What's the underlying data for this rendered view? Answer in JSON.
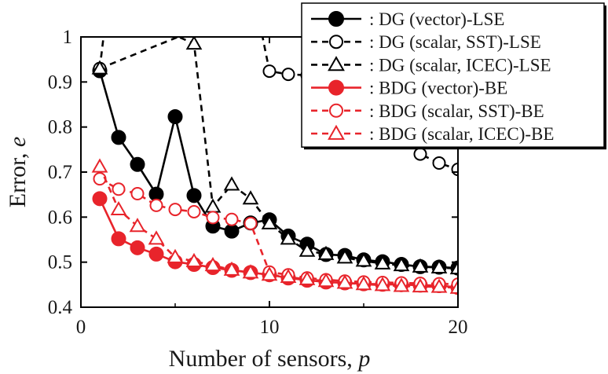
{
  "chart_data": {
    "type": "line",
    "xlabel": "Number of sensors, ",
    "xlabel_var": "p",
    "ylabel": "Error, ",
    "ylabel_var": "e",
    "xlim": [
      0,
      20
    ],
    "ylim": [
      0.4,
      1.0
    ],
    "xticks": [
      0,
      10,
      20
    ],
    "xtick_labels": [
      "0",
      "10",
      "20"
    ],
    "yticks": [
      0.4,
      0.5,
      0.6,
      0.7,
      0.8,
      0.9,
      1.0
    ],
    "ytick_labels": [
      "0.4",
      "0.5",
      "0.6",
      "0.7",
      "0.8",
      "0.9",
      "1"
    ],
    "grid": false,
    "legend_position": "top-right",
    "series": [
      {
        "name": ": DG (vector)-LSE",
        "color": "#000000",
        "dash": "solid",
        "marker": "circle",
        "filled": true,
        "x": [
          1,
          2,
          3,
          4,
          5,
          6,
          7,
          8,
          9,
          10,
          11,
          12,
          13,
          14,
          15,
          16,
          17,
          18,
          19,
          20
        ],
        "y": [
          0.925,
          0.777,
          0.717,
          0.651,
          0.823,
          0.648,
          0.58,
          0.569,
          0.587,
          0.594,
          0.558,
          0.54,
          0.517,
          0.515,
          0.505,
          0.501,
          0.495,
          0.49,
          0.489,
          0.487
        ]
      },
      {
        "name": ": DG (scalar, SST)-LSE",
        "color": "#000000",
        "dash": "dashed",
        "marker": "circle",
        "filled": false,
        "x": [
          1,
          9.3,
          10,
          11,
          12,
          13,
          14,
          15,
          16,
          17,
          18,
          19,
          20
        ],
        "y": [
          0.93,
          1.07,
          0.924,
          0.917,
          0.915,
          0.9,
          0.88,
          0.86,
          0.83,
          0.8,
          0.74,
          0.72,
          0.706
        ]
      },
      {
        "name": ": DG (scalar, ICEC)-LSE",
        "color": "#000000",
        "dash": "dashed",
        "marker": "triangle",
        "filled": false,
        "x": [
          1,
          1.4,
          6,
          7,
          8,
          9,
          10,
          11,
          12,
          13,
          14,
          15,
          16,
          17,
          18,
          19,
          20
        ],
        "y": [
          0.93,
          1.07,
          0.985,
          0.623,
          0.672,
          0.641,
          0.586,
          0.552,
          0.525,
          0.518,
          0.51,
          0.503,
          0.497,
          0.493,
          0.49,
          0.488,
          0.486
        ]
      },
      {
        "name": ": BDG (vector)-BE",
        "color": "#e8242b",
        "dash": "solid",
        "marker": "circle",
        "filled": true,
        "x": [
          1,
          2,
          3,
          4,
          5,
          6,
          7,
          8,
          9,
          10,
          11,
          12,
          13,
          14,
          15,
          16,
          17,
          18,
          19,
          20
        ],
        "y": [
          0.641,
          0.552,
          0.532,
          0.518,
          0.501,
          0.495,
          0.488,
          0.482,
          0.477,
          0.472,
          0.465,
          0.46,
          0.456,
          0.454,
          0.452,
          0.451,
          0.45,
          0.449,
          0.448,
          0.444
        ]
      },
      {
        "name": ": BDG (scalar, SST)-BE",
        "color": "#e8242b",
        "dash": "dashed",
        "marker": "circle",
        "filled": false,
        "x": [
          1,
          2,
          3,
          4,
          5,
          6,
          7,
          8,
          9,
          10,
          11,
          12,
          13,
          14,
          15,
          16,
          17,
          18,
          19,
          20
        ],
        "y": [
          0.685,
          0.662,
          0.652,
          0.626,
          0.617,
          0.612,
          0.599,
          0.595,
          0.586,
          0.478,
          0.472,
          0.465,
          0.461,
          0.458,
          0.456,
          0.455,
          0.454,
          0.453,
          0.452,
          0.451
        ]
      },
      {
        "name": ": BDG (scalar, ICEC)-BE",
        "color": "#e8242b",
        "dash": "dashed",
        "marker": "triangle",
        "filled": false,
        "x": [
          1,
          2,
          3,
          4,
          5,
          6,
          7,
          8,
          9,
          10,
          11,
          12,
          13,
          14,
          15,
          16,
          17,
          18,
          19,
          20
        ],
        "y": [
          0.712,
          0.617,
          0.58,
          0.552,
          0.511,
          0.502,
          0.493,
          0.483,
          0.477,
          0.472,
          0.467,
          0.462,
          0.458,
          0.454,
          0.451,
          0.449,
          0.447,
          0.446,
          0.445,
          0.443
        ]
      }
    ]
  }
}
